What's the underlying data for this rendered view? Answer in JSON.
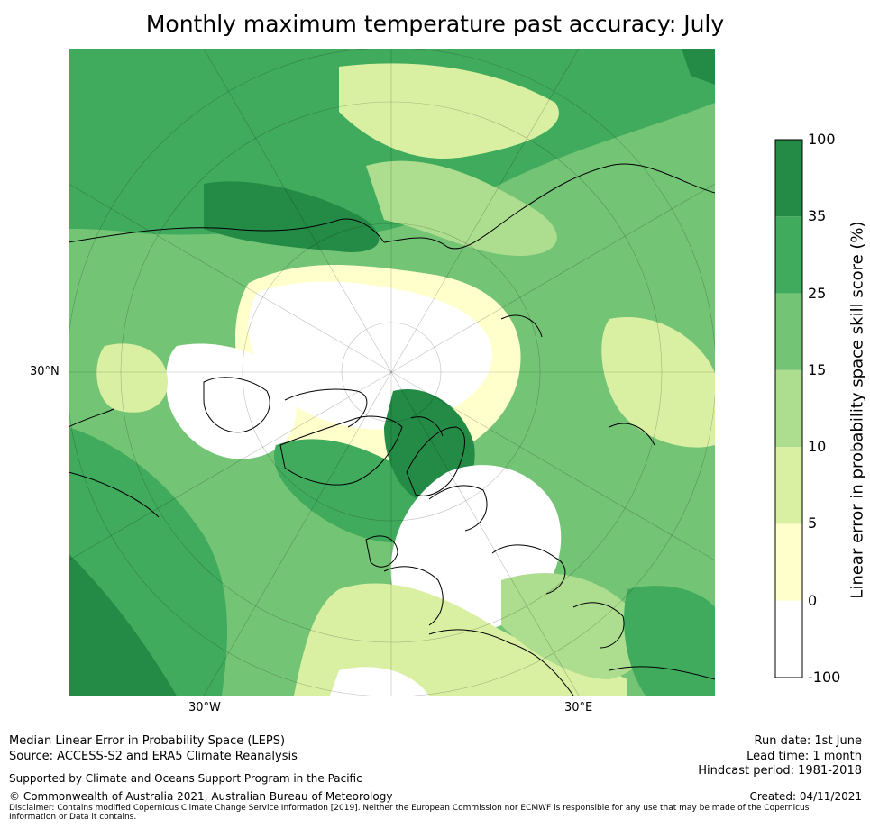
{
  "title": "Monthly maximum temperature past accuracy: July",
  "map": {
    "lat_label": "30°N",
    "lon_labels": [
      "30°W",
      "30°E"
    ]
  },
  "colorbar": {
    "label": "Linear error in probability space skill score (%)",
    "ticks": [
      "100",
      "35",
      "25",
      "15",
      "10",
      "5",
      "0",
      "-100"
    ],
    "bins": [
      {
        "from": 35,
        "to": 100,
        "color": "#238b45"
      },
      {
        "from": 25,
        "to": 35,
        "color": "#41ab5d"
      },
      {
        "from": 15,
        "to": 25,
        "color": "#74c476"
      },
      {
        "from": 10,
        "to": 15,
        "color": "#addd8e"
      },
      {
        "from": 5,
        "to": 10,
        "color": "#d9f0a3"
      },
      {
        "from": 0,
        "to": 5,
        "color": "#ffffcc"
      },
      {
        "from": -100,
        "to": 0,
        "color": "#ffffff"
      }
    ]
  },
  "footer": {
    "left_line1": "Median Linear Error in Probability Space (LEPS)",
    "left_line2": "Source: ACCESS-S2 and ERA5 Climate Reanalysis",
    "supported": "Supported by Climate and Oceans Support Program in the Pacific",
    "copyright": "© Commonwealth of Australia 2021, Australian Bureau of Meteorology",
    "disclaimer": "Disclaimer: Contains modified Copernicus Climate Change Service Information [2019]. Neither the European Commission nor ECMWF is responsible for any use that may be made of the Copernicus Information or Data it contains.",
    "run_date": "Run date: 1st June",
    "lead_time": "Lead time: 1 month",
    "hindcast": "Hindcast period: 1981-2018",
    "created": "Created: 04/11/2021"
  }
}
